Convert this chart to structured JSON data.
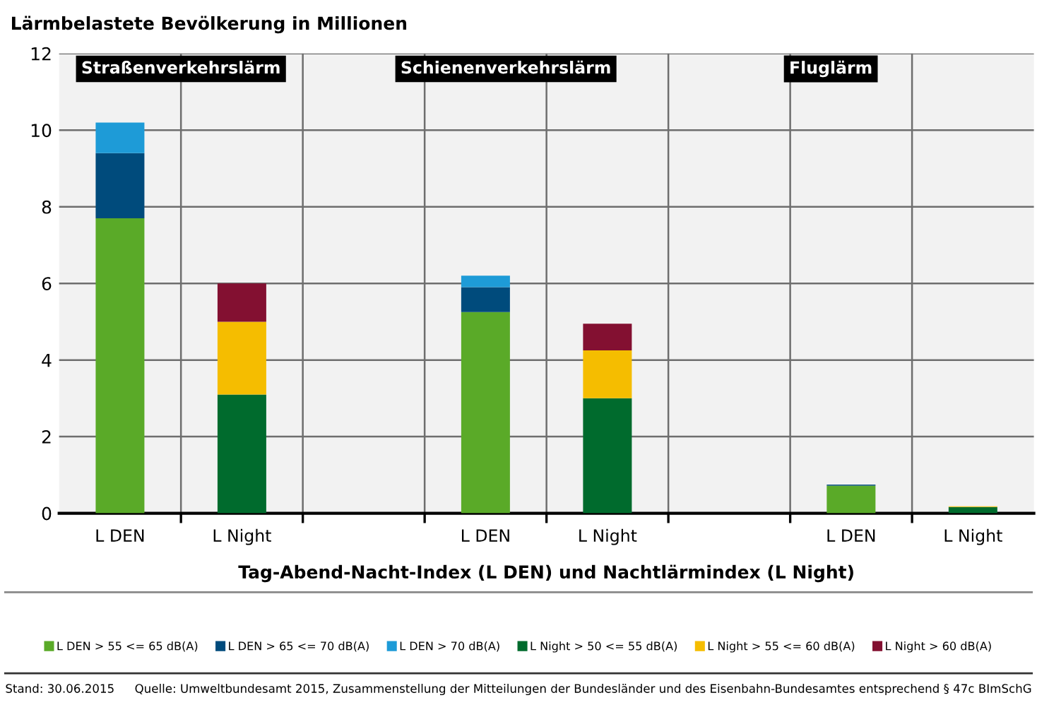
{
  "chart_data": {
    "type": "bar",
    "title": "Lärmbelastete Bevölkerung in Millionen",
    "xlabel": "Tag-Abend-Nacht-Index (L DEN) und Nachtlärmindex (L Night)",
    "categories": [
      "L DEN",
      "L Night",
      null,
      "L DEN",
      "L Night",
      null,
      "L DEN",
      "L Night"
    ],
    "stacked": true,
    "series": [
      {
        "name": "L DEN > 55 <= 65 dB(A)",
        "color": "#5aaa28",
        "values": [
          7.7,
          null,
          null,
          5.25,
          null,
          null,
          0.72,
          null
        ]
      },
      {
        "name": "L DEN > 65 <= 70 dB(A)",
        "color": "#004b7c",
        "values": [
          1.7,
          null,
          null,
          0.65,
          null,
          null,
          0.03,
          null
        ]
      },
      {
        "name": "L DEN > 70 dB(A)",
        "color": "#1e9bd7",
        "values": [
          0.8,
          null,
          null,
          0.3,
          null,
          null,
          0.0,
          null
        ]
      },
      {
        "name": "L Night > 50 <= 55 dB(A)",
        "color": "#006b2d",
        "values": [
          null,
          3.1,
          null,
          null,
          3.0,
          null,
          null,
          0.16
        ]
      },
      {
        "name": "L Night > 55 <= 60 dB(A)",
        "color": "#f5bd00",
        "values": [
          null,
          1.9,
          null,
          null,
          1.25,
          null,
          null,
          0.02
        ]
      },
      {
        "name": "L Night > 60 dB(A)",
        "color": "#831031",
        "values": [
          null,
          1.0,
          null,
          null,
          0.7,
          null,
          null,
          0.0
        ]
      }
    ],
    "ylim": [
      0,
      12
    ],
    "yticks": [
      0,
      2,
      4,
      6,
      8,
      10,
      12
    ],
    "grid": true,
    "legend": "bottom",
    "annotations": [
      "Straßenverkehrslärm",
      "Schienenverkehrslärm",
      "Fluglärm",
      "Stand: 30.06.2015",
      "Quelle: Umweltbundesamt 2015, Zusammenstellung der Mitteilungen der Bundesländer und des Eisenbahn-Bundesamtes entsprechend § 47c BImSchG"
    ]
  }
}
